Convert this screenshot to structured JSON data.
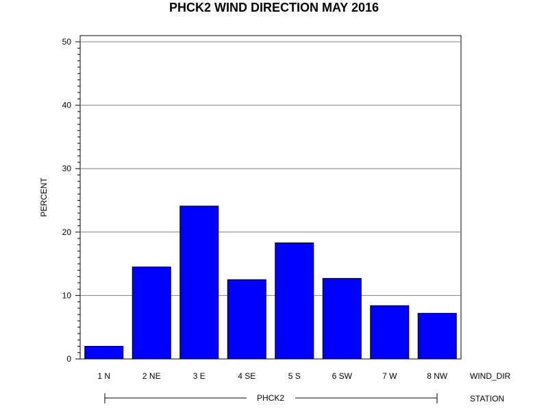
{
  "chart_data": {
    "type": "bar",
    "title": "PHCK2 WIND DIRECTION MAY 2016",
    "ylabel": "PERCENT",
    "xlabel": "WIND_DIR",
    "group_axis_label": "STATION",
    "group_label": "PHCK2",
    "categories": [
      "1 N",
      "2 NE",
      "3 E",
      "4 SE",
      "5 S",
      "6 SW",
      "7 W",
      "8 NW"
    ],
    "values": [
      2.0,
      14.5,
      24.1,
      12.5,
      18.3,
      12.7,
      8.4,
      7.2
    ],
    "ylim": [
      0,
      51
    ],
    "yticks": [
      "0",
      "10",
      "20",
      "30",
      "40",
      "50"
    ],
    "grid": true,
    "bar_color": "#0000ff",
    "bar_edge_color": "#000000"
  }
}
